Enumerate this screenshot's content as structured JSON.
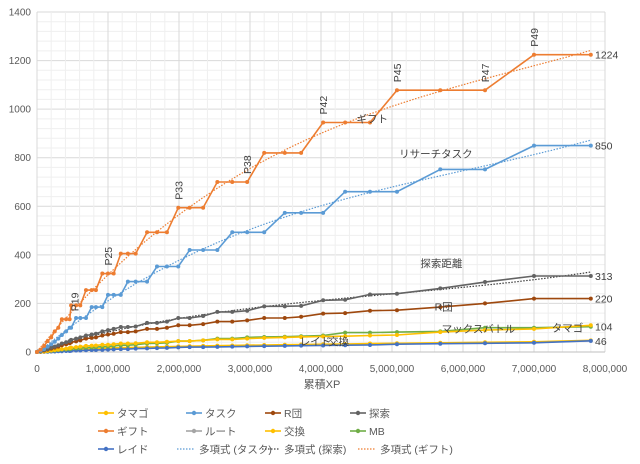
{
  "chart_data": {
    "type": "line",
    "title": "",
    "xlabel": "累積XP",
    "ylabel": "",
    "xlim": [
      0,
      8000000
    ],
    "ylim": [
      0,
      1400
    ],
    "x_ticks": [
      "0",
      "1,000,000",
      "2,000,000",
      "3,000,000",
      "4,000,000",
      "5,000,000",
      "6,000,000",
      "7,000,000",
      "8,000,000"
    ],
    "y_ticks": [
      "0",
      "200",
      "400",
      "600",
      "800",
      "1000",
      "1200",
      "1400"
    ],
    "grid": true,
    "legend_position": "bottom",
    "x": [
      0,
      50000,
      100000,
      150000,
      200000,
      250000,
      300000,
      350000,
      410000,
      460000,
      480000,
      550000,
      610000,
      690000,
      770000,
      830000,
      920000,
      1000000,
      1080000,
      1180000,
      1280000,
      1390000,
      1550000,
      1690000,
      1830000,
      1990000,
      2150000,
      2340000,
      2540000,
      2750000,
      2960000,
      3200000,
      3490000,
      3720000,
      4030000,
      4340000,
      4690000,
      5070000,
      5680000,
      6310000,
      7000000,
      7800000
    ],
    "series": [
      {
        "name": "タマゴ",
        "color": "#FFC000",
        "values": [
          0,
          1,
          2,
          4,
          6,
          8,
          10,
          12,
          14,
          16,
          18,
          20,
          22,
          25,
          26,
          27,
          30,
          30,
          32,
          35,
          35,
          36,
          40,
          40,
          42,
          45,
          45,
          48,
          52,
          52,
          55,
          58,
          60,
          62,
          64,
          65,
          68,
          70,
          82,
          90,
          95,
          110
        ]
      },
      {
        "name": "タスク",
        "color": "#5B9BD5",
        "values": [
          0,
          5,
          12,
          22,
          32,
          42,
          55,
          70,
          85,
          100,
          100,
          140,
          140,
          140,
          185,
          185,
          185,
          235,
          235,
          235,
          290,
          290,
          290,
          352,
          352,
          352,
          420,
          420,
          420,
          493,
          493,
          493,
          573,
          573,
          573,
          660,
          660,
          660,
          752,
          752,
          850,
          850
        ]
      },
      {
        "name": "R団",
        "color": "#9E480E",
        "values": [
          0,
          2,
          6,
          10,
          14,
          18,
          22,
          28,
          32,
          36,
          40,
          44,
          48,
          55,
          58,
          60,
          68,
          72,
          75,
          82,
          82,
          85,
          95,
          95,
          100,
          110,
          110,
          115,
          125,
          125,
          130,
          140,
          140,
          145,
          158,
          160,
          170,
          172,
          185,
          200,
          220,
          220
        ]
      },
      {
        "name": "探索",
        "color": "#636363",
        "values": [
          0,
          3,
          8,
          12,
          18,
          22,
          28,
          35,
          40,
          45,
          50,
          55,
          60,
          68,
          72,
          75,
          85,
          90,
          95,
          103,
          103,
          105,
          120,
          120,
          125,
          140,
          140,
          148,
          165,
          165,
          170,
          188,
          188,
          190,
          213,
          215,
          237,
          240,
          262,
          288,
          313,
          313
        ]
      },
      {
        "name": "ギフト",
        "color": "#ED7D31",
        "values": [
          0,
          10,
          25,
          45,
          60,
          85,
          100,
          135,
          135,
          135,
          192,
          192,
          192,
          255,
          255,
          255,
          323,
          323,
          323,
          405,
          405,
          405,
          493,
          493,
          493,
          594,
          594,
          594,
          700,
          700,
          700,
          820,
          820,
          820,
          945,
          945,
          945,
          1078,
          1078,
          1078,
          1224,
          1224
        ]
      },
      {
        "name": "ルート",
        "color": "#A5A5A5",
        "values": [
          0,
          1,
          1,
          2,
          2,
          3,
          4,
          5,
          6,
          6,
          7,
          8,
          9,
          10,
          10,
          11,
          12,
          13,
          14,
          15,
          15,
          16,
          17,
          18,
          19,
          20,
          21,
          22,
          23,
          24,
          25,
          26,
          27,
          28,
          30,
          31,
          33,
          35,
          37,
          39,
          40,
          46
        ]
      },
      {
        "name": "交換",
        "color": "#FFC000",
        "values": [
          0,
          1,
          1,
          2,
          3,
          4,
          5,
          6,
          7,
          8,
          9,
          10,
          11,
          12,
          13,
          14,
          15,
          16,
          17,
          18,
          18,
          19,
          20,
          21,
          22,
          23,
          24,
          25,
          26,
          27,
          28,
          29,
          30,
          31,
          32,
          33,
          35,
          36,
          38,
          40,
          42,
          48
        ]
      },
      {
        "name": "MB",
        "color": "#70AD47",
        "values": [
          0,
          1,
          2,
          3,
          5,
          6,
          8,
          10,
          11,
          12,
          14,
          15,
          16,
          18,
          19,
          20,
          22,
          23,
          25,
          28,
          28,
          30,
          35,
          36,
          38,
          45,
          45,
          48,
          55,
          55,
          60,
          62,
          63,
          65,
          68,
          80,
          80,
          82,
          85,
          100,
          100,
          104
        ]
      },
      {
        "name": "レイド",
        "color": "#4472C4",
        "values": [
          0,
          1,
          1,
          1,
          2,
          2,
          3,
          3,
          4,
          4,
          5,
          6,
          6,
          7,
          8,
          8,
          9,
          10,
          11,
          12,
          12,
          14,
          15,
          16,
          17,
          19,
          20,
          20,
          21,
          22,
          23,
          24,
          25,
          26,
          27,
          28,
          29,
          32,
          34,
          36,
          38,
          46
        ]
      }
    ],
    "trendlines": [
      {
        "name": "多項式 (タスク)",
        "of": "タスク",
        "color": "#5B9BD5"
      },
      {
        "name": "多項式 (探索)",
        "of": "探索",
        "color": "#404040"
      },
      {
        "name": "多項式 (ギフト)",
        "of": "ギフト",
        "color": "#ED7D31"
      }
    ],
    "annotations": {
      "levels": [
        {
          "text": "P19",
          "x": 530000,
          "y": 135
        },
        {
          "text": "P25",
          "x": 1000000,
          "y": 323
        },
        {
          "text": "P33",
          "x": 1990000,
          "y": 594
        },
        {
          "text": "P38",
          "x": 2960000,
          "y": 700
        },
        {
          "text": "P42",
          "x": 4030000,
          "y": 945
        },
        {
          "text": "P45",
          "x": 5070000,
          "y": 1078
        },
        {
          "text": "P47",
          "x": 6310000,
          "y": 1078
        },
        {
          "text": "P49",
          "x": 7000000,
          "y": 1224
        }
      ],
      "series_labels": [
        {
          "text": "ギフト",
          "x": 4500000,
          "y": 945
        },
        {
          "text": "リサーチタスク",
          "x": 5100000,
          "y": 800
        },
        {
          "text": "探索距離",
          "x": 5400000,
          "y": 350
        },
        {
          "text": "R団",
          "x": 5600000,
          "y": 170
        },
        {
          "text": "マックスバトル",
          "x": 5700000,
          "y": 80
        },
        {
          "text": "タマゴ",
          "x": 7250000,
          "y": 84
        },
        {
          "text": "交換",
          "x": 4100000,
          "y": 28
        },
        {
          "text": "レイド",
          "x": 3700000,
          "y": 28
        }
      ],
      "end_values": [
        {
          "text": "1224",
          "y": 1224
        },
        {
          "text": "850",
          "y": 850
        },
        {
          "text": "313",
          "y": 313
        },
        {
          "text": "220",
          "y": 220
        },
        {
          "text": "104",
          "y": 104
        },
        {
          "text": "46",
          "y": 46
        }
      ]
    }
  }
}
